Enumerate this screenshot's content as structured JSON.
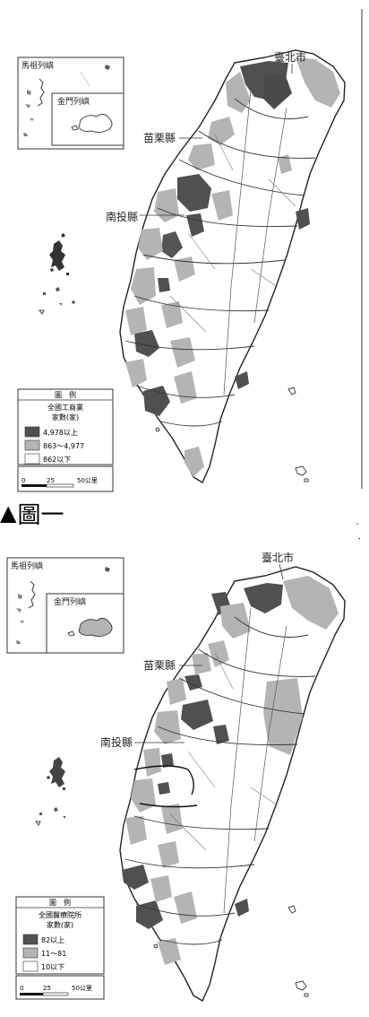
{
  "map1": {
    "inset_matsu": "馬祖列嶼",
    "inset_kinmen": "金門列嶼",
    "label_taipei": "臺北市",
    "label_miaoli": "苗栗縣",
    "label_nantou": "南投縣",
    "legend": {
      "title": "圖　例",
      "subtitle_line1": "全國工商業",
      "subtitle_line2": "家數(家)",
      "classes": [
        {
          "label": "4,978以上",
          "color": "#505050"
        },
        {
          "label": "863～4,977",
          "color": "#b4b4b4"
        },
        {
          "label": "862以下",
          "color": "#ffffff"
        }
      ],
      "scale": {
        "zero": "0",
        "mid": "25",
        "end": "50公里"
      }
    }
  },
  "caption": {
    "marker": "▲",
    "text": "圖一"
  },
  "map2": {
    "inset_matsu": "馬祖列嶼",
    "inset_kinmen": "金門列嶼",
    "label_taipei": "臺北市",
    "label_miaoli": "苗栗縣",
    "label_nantou": "南投縣",
    "legend": {
      "title": "圖　例",
      "subtitle_line1": "全國醫療院所",
      "subtitle_line2": "家數(家)",
      "classes": [
        {
          "label": "82以上",
          "color": "#505050"
        },
        {
          "label": "11～81",
          "color": "#b4b4b4"
        },
        {
          "label": "10以下",
          "color": "#ffffff"
        }
      ],
      "scale": {
        "zero": "0",
        "mid": "25",
        "end": "50公里"
      }
    }
  }
}
